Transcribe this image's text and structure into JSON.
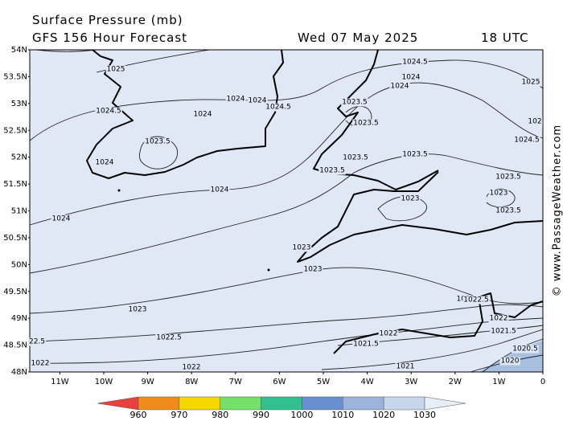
{
  "header": {
    "title": "Surface Pressure (mb)",
    "subtitle": "GFS 156 Hour Forecast",
    "date": "Wed 07 May 2025",
    "time": "18 UTC"
  },
  "latitude_labels": [
    "54N",
    "53.5N",
    "53N",
    "52.5N",
    "52N",
    "51.5N",
    "51N",
    "50.5N",
    "50N",
    "49.5N",
    "49N",
    "48.5N",
    "48N"
  ],
  "longitude_labels": [
    "11W",
    "10W",
    "9W",
    "8W",
    "7W",
    "6W",
    "5W",
    "4W",
    "3W",
    "2W",
    "1W",
    "0"
  ],
  "contour_labels": [
    "1025",
    "1024.5",
    "1024",
    "1024",
    "1025",
    "1024.5",
    "1024",
    "1024",
    "1024.5",
    "1024",
    "1023.5",
    "1023.5",
    "1024.5",
    "102",
    "1023.5",
    "1024",
    "1023.5",
    "1023.5",
    "1023.5",
    "1023.5",
    "1024",
    "1023",
    "1023",
    "1023.5",
    "1024",
    "1023",
    "1023",
    "1023",
    "1023",
    "1022.5",
    "1022.5",
    "1022",
    "1021.5",
    "1022",
    "1021.5",
    "22.5",
    "1020.5",
    "1022",
    "1020",
    "1021",
    "1022"
  ],
  "colorbar": {
    "values": [
      960,
      970,
      980,
      990,
      1000,
      1010,
      1020,
      1030
    ],
    "colors": [
      "#e8403c",
      "#f08c1c",
      "#f5d800",
      "#74e06a",
      "#32c090",
      "#6890d0",
      "#9cb4dc",
      "#c8d6ec",
      "#e8eef8"
    ]
  },
  "credit": "© www.PassageWeather.com"
}
